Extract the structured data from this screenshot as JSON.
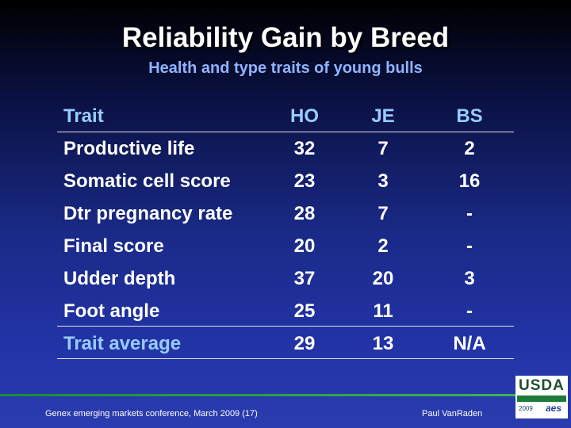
{
  "slide": {
    "title": "Reliability Gain by Breed",
    "subtitle": "Health and type traits of young bulls"
  },
  "table": {
    "headers": [
      "Trait",
      "HO",
      "JE",
      "BS"
    ],
    "rows": [
      [
        "Productive life",
        "32",
        "7",
        "2"
      ],
      [
        "Somatic cell score",
        "23",
        "3",
        "16"
      ],
      [
        "Dtr pregnancy rate",
        "28",
        "7",
        "-"
      ],
      [
        "Final score",
        "20",
        "2",
        "-"
      ],
      [
        "Udder depth",
        "37",
        "20",
        "3"
      ],
      [
        "Foot angle",
        "25",
        "11",
        "-"
      ]
    ],
    "average": [
      "Trait average",
      "29",
      "13",
      "N/A"
    ]
  },
  "footer": {
    "left": "Genex emerging markets conference, March 2009 (17)",
    "right": "Paul VanRaden"
  },
  "logo": {
    "text": "USDA",
    "year": "2009",
    "mark": "aes"
  }
}
